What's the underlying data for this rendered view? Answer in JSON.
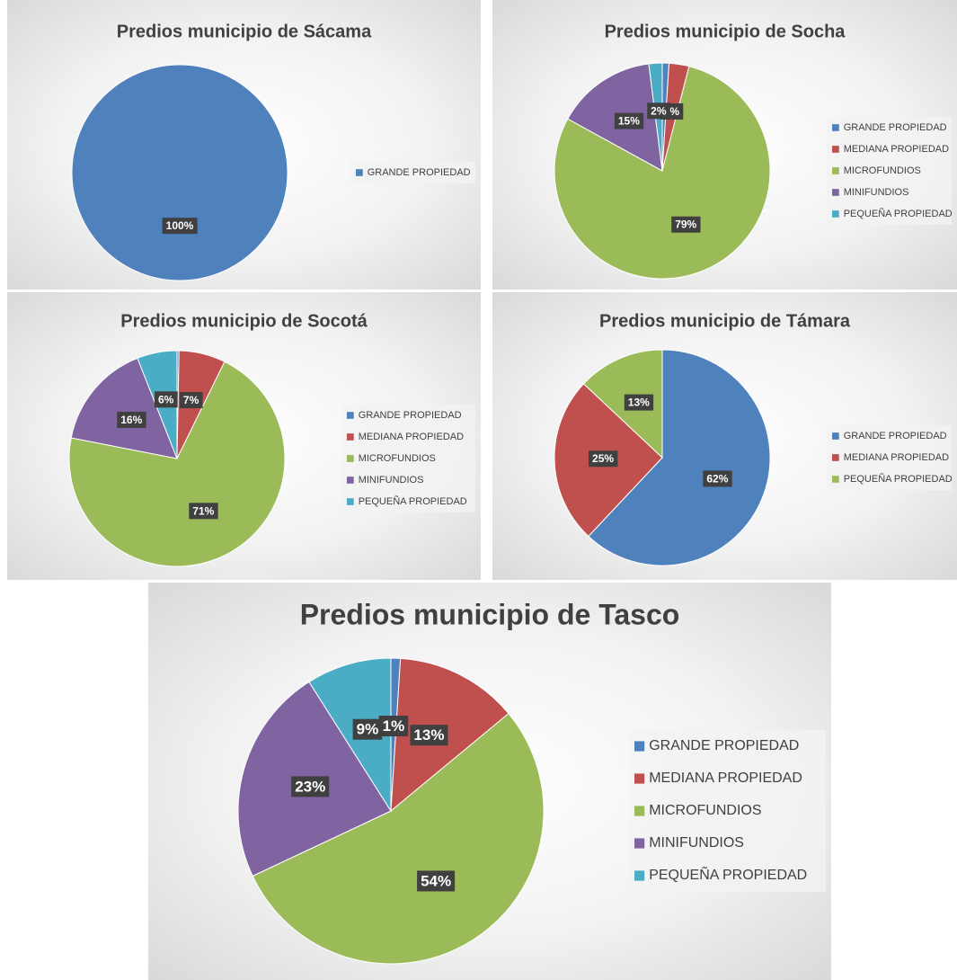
{
  "chart_data": [
    {
      "type": "pie",
      "title": "Predios municipio de Sácama",
      "categories": [
        "GRANDE PROPIEDAD"
      ],
      "values": [
        100
      ],
      "value_labels": [
        "100%"
      ],
      "colors": [
        "#4f81bd"
      ]
    },
    {
      "type": "pie",
      "title": "Predios municipio de Socha",
      "categories": [
        "GRANDE PROPIEDAD",
        "MEDIANA PROPIEDAD",
        "MICROFUNDIOS",
        "MINIFUNDIOS",
        "PEQUEÑA PROPIEDAD"
      ],
      "values": [
        1,
        3,
        79,
        15,
        2
      ],
      "value_labels": [
        null,
        "3%",
        "79%",
        "15%",
        "2%"
      ],
      "colors": [
        "#4f81bd",
        "#c0504d",
        "#9bbb59",
        "#8064a2",
        "#4bacc6"
      ]
    },
    {
      "type": "pie",
      "title": "Predios municipio de Socotá",
      "categories": [
        "GRANDE PROPIEDAD",
        "MEDIANA PROPIEDAD",
        "MICROFUNDIOS",
        "MINIFUNDIOS",
        "PEQUEÑA PROPIEDAD"
      ],
      "values": [
        0.3,
        7,
        71,
        16,
        6
      ],
      "value_labels": [
        null,
        "7%",
        "71%",
        "16%",
        "6%"
      ],
      "colors": [
        "#4f81bd",
        "#c0504d",
        "#9bbb59",
        "#8064a2",
        "#4bacc6"
      ]
    },
    {
      "type": "pie",
      "title": "Predios municipio de Támara",
      "categories": [
        "GRANDE PROPIEDAD",
        "MEDIANA PROPIEDAD",
        "PEQUEÑA PROPIEDAD"
      ],
      "values": [
        62,
        25,
        13
      ],
      "value_labels": [
        "62%",
        "25%",
        "13%"
      ],
      "colors": [
        "#4f81bd",
        "#c0504d",
        "#9bbb59"
      ]
    },
    {
      "type": "pie",
      "title": "Predios municipio de Tasco",
      "categories": [
        "GRANDE PROPIEDAD",
        "MEDIANA PROPIEDAD",
        "MICROFUNDIOS",
        "MINIFUNDIOS",
        "PEQUEÑA PROPIEDAD"
      ],
      "values": [
        1,
        13,
        54,
        23,
        9
      ],
      "value_labels": [
        "1%",
        "13%",
        "54%",
        "23%",
        "9%"
      ],
      "colors": [
        "#4f81bd",
        "#c0504d",
        "#9bbb59",
        "#8064a2",
        "#4bacc6"
      ]
    }
  ]
}
